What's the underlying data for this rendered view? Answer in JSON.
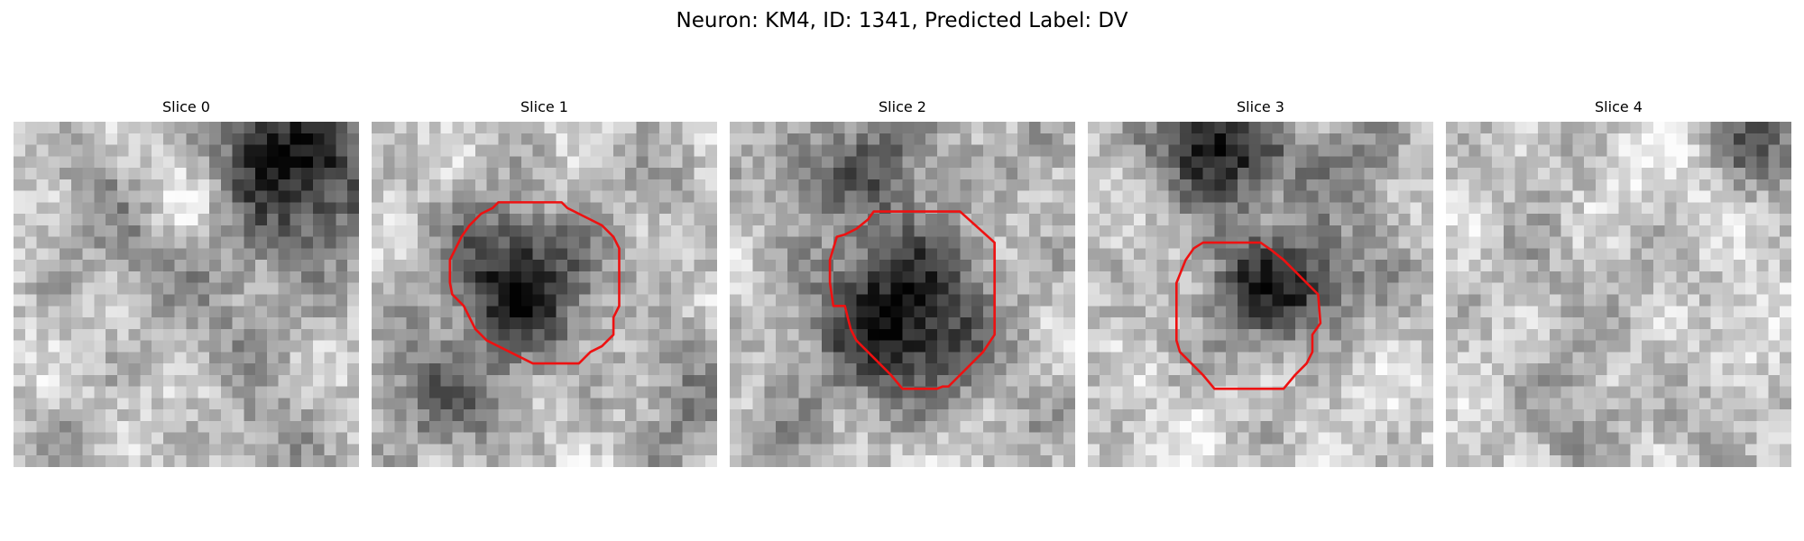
{
  "figure": {
    "title": "Neuron: KM4, ID: 1341, Predicted Label: DV",
    "contour_color": "#ee1111"
  },
  "panels": [
    {
      "title": "Slice 0",
      "has_contour": false
    },
    {
      "title": "Slice 1",
      "has_contour": true
    },
    {
      "title": "Slice 2",
      "has_contour": true
    },
    {
      "title": "Slice 3",
      "has_contour": true
    },
    {
      "title": "Slice 4",
      "has_contour": false
    }
  ]
}
